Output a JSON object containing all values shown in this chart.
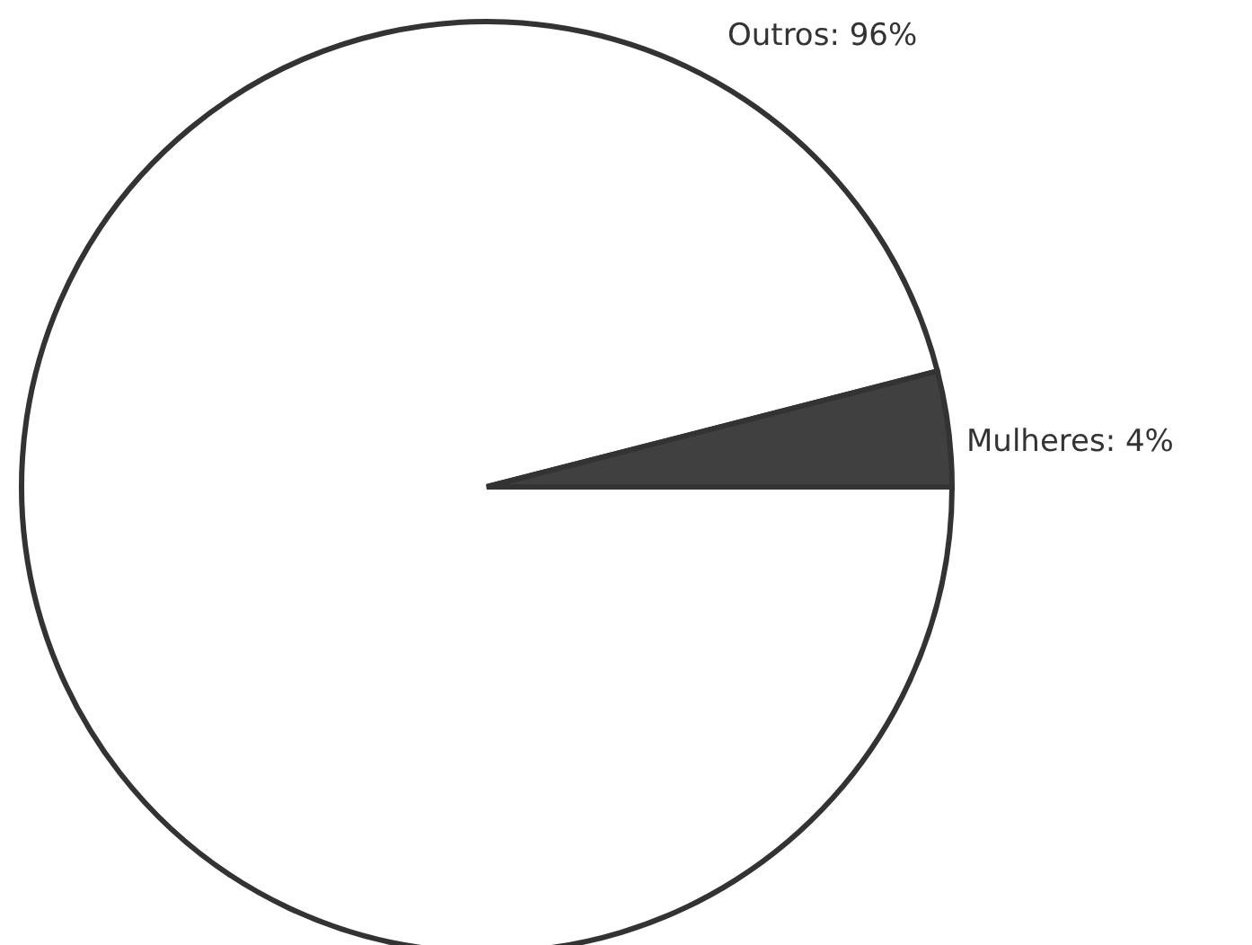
{
  "chart_data": {
    "type": "pie",
    "categories": [
      "Outros",
      "Mulheres"
    ],
    "values": [
      96,
      4
    ],
    "colors": [
      "#ffffff",
      "#404040"
    ],
    "value_labels": [
      "96%",
      "4%"
    ]
  }
}
